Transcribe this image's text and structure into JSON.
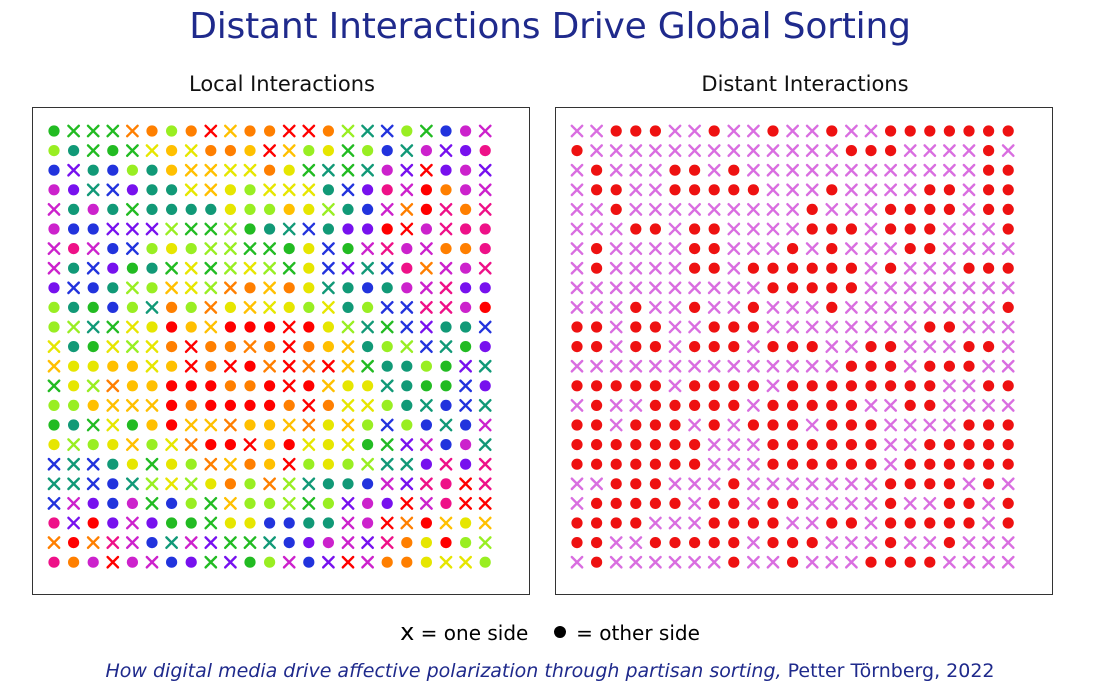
{
  "title": "Distant Interactions Drive Global Sorting",
  "panels": {
    "left": {
      "title": "Local Interactions"
    },
    "right": {
      "title": "Distant Interactions"
    }
  },
  "legend": {
    "x_symbol": "x",
    "x_text": " = one side",
    "dot_text": " = other side"
  },
  "citation": {
    "italic": "How digital media drive affective polarization through partisan sorting,",
    "rest": " Petter Törnberg, 2022"
  },
  "colors": {
    "title": "#1f2a8c",
    "right_x": "#d96ee0",
    "right_dot": "#ee1111",
    "palette": [
      "#ff0000",
      "#ff7f00",
      "#ffc000",
      "#e6e600",
      "#99ee22",
      "#22bb22",
      "#119977",
      "#2233dd",
      "#7711ee",
      "#cc22cc",
      "#ee1188"
    ]
  },
  "grid": {
    "rows": 23,
    "cols": 23
  },
  "right_grid_dots": [
    "00111001001001001111111",
    "10000000000000111000010",
    "01000110100000000000011",
    "01100111110001000011011",
    "00100000000010001111011",
    "00011011000011101110001",
    "01000011000101000110000",
    "01000011011111101000111",
    "00000000001111100000000",
    "00010010010001000000001",
    "11011001110000000011000",
    "11011011101110011000110",
    "00000000000000111011100",
    "11111011110111111110011",
    "01001111101111100110000",
    "11011101011101110000111",
    "11111110001111110011111",
    "11111110001111110111111",
    "00111000100000001111010",
    "01111101101100001001101",
    "11110001111001101111101",
    "11001111101110001001000",
    "01000000100100011110000"
  ]
}
